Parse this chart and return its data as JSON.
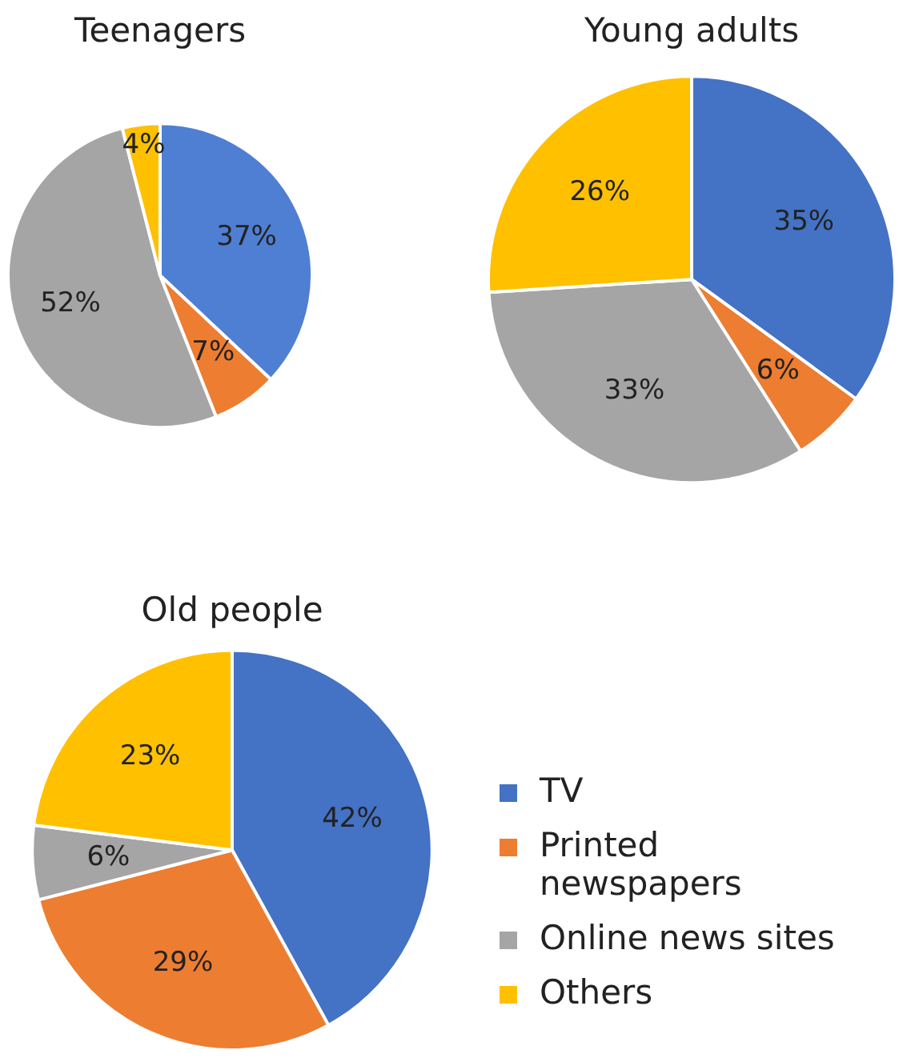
{
  "chart_data": [
    {
      "type": "pie",
      "title": "Teenagers",
      "categories": [
        null,
        null,
        null,
        null
      ],
      "values": [
        37,
        7,
        52,
        4
      ],
      "colors": [
        "#4f7fd3",
        "#ed7d31",
        "#a5a5a5",
        "#ffc000"
      ],
      "value_labels": [
        "37%",
        "7%",
        "52%",
        "4%"
      ],
      "legend": false
    },
    {
      "type": "pie",
      "title": "Young adults",
      "categories": [
        null,
        null,
        null,
        null
      ],
      "values": [
        35,
        6,
        33,
        26
      ],
      "colors": [
        "#4472c4",
        "#ed7d31",
        "#a5a5a5",
        "#ffc000"
      ],
      "value_labels": [
        "35%",
        "6%",
        "33%",
        "26%"
      ],
      "legend": false
    },
    {
      "type": "pie",
      "title": "Old people",
      "categories": [
        "TV",
        "Printed newspapers",
        "Online news sites",
        "Others"
      ],
      "values": [
        42,
        29,
        6,
        23
      ],
      "colors": [
        "#4472c4",
        "#ed7d31",
        "#a5a5a5",
        "#ffc000"
      ],
      "value_labels": [
        "42%",
        "29%",
        "6%",
        "23%"
      ],
      "legend": "right"
    }
  ]
}
